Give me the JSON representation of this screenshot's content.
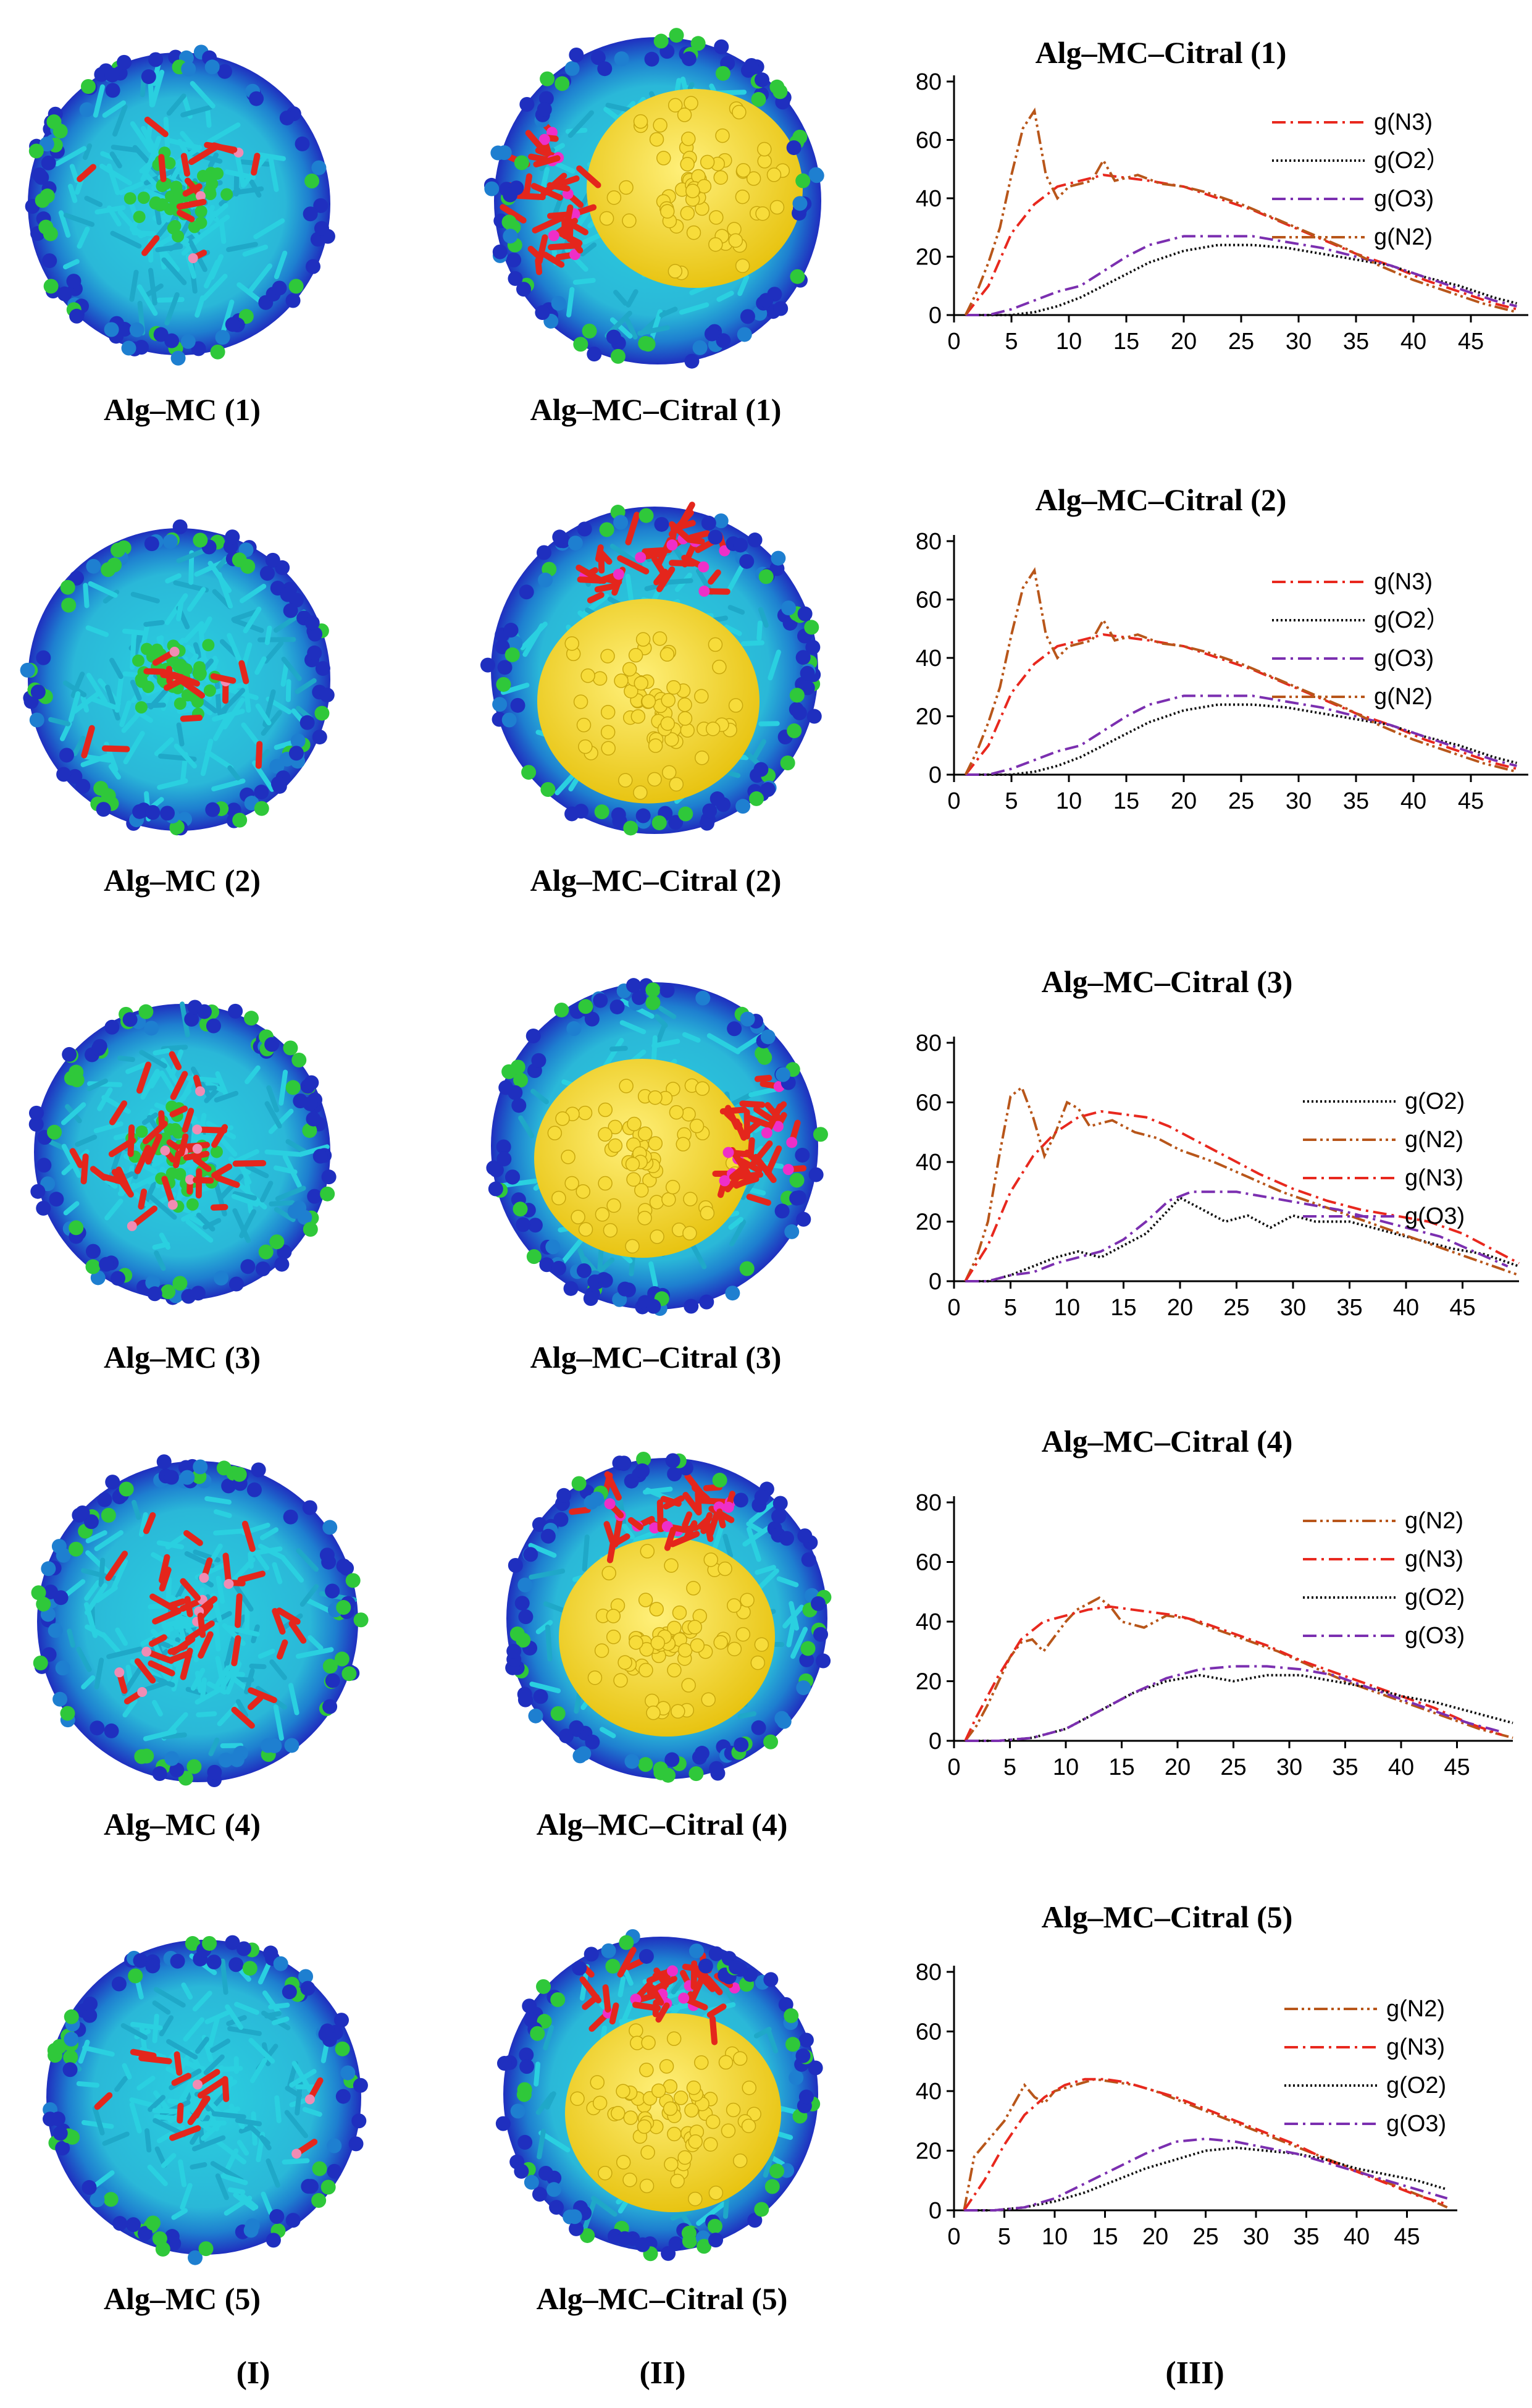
{
  "column_labels": [
    "(I)",
    "(II)",
    "(III)"
  ],
  "rows": [
    {
      "label_I": "Alg–MC (1)",
      "label_II": "Alg–MC–Citral (1)"
    },
    {
      "label_I": "Alg–MC (2)",
      "label_II": "Alg–MC–Citral (2)"
    },
    {
      "label_I": "Alg–MC (3)",
      "label_II": "Alg–MC–Citral (3)"
    },
    {
      "label_I": "Alg–MC (4)",
      "label_II": "Alg–MC–Citral (4)"
    },
    {
      "label_I": "Alg–MC (5)",
      "label_II": "Alg–MC–Citral (5)"
    }
  ],
  "colors": {
    "shell_dark_blue": "#1f2fbf",
    "shell_light_blue": "#1e7fd0",
    "cyan": "#2ad0e0",
    "green": "#2fc83a",
    "red": "#e4261c",
    "yellow": "#f2d21c",
    "magenta": "#ee2fc8",
    "pink": "#f08cb4"
  },
  "series_styles": {
    "g(N3)": {
      "color": "#e8281e",
      "dash": "22,8,4,8"
    },
    "g(O2）": {
      "color": "#111111",
      "dash": "3,4"
    },
    "g(O2)": {
      "color": "#111111",
      "dash": "3,4"
    },
    "g(O3)": {
      "color": "#7b2fb0",
      "dash": "22,8,4,8"
    },
    "g(N2)": {
      "color": "#b8561a",
      "dash": "22,6,4,6,4,6"
    }
  },
  "chart_data": [
    {
      "type": "line",
      "title": "Alg–MC–Citral (1)",
      "xlabel": "",
      "ylabel": "",
      "xlim": [
        0,
        50
      ],
      "ylim": [
        0,
        80
      ],
      "xticks": [
        0,
        5,
        10,
        15,
        20,
        25,
        30,
        35,
        40,
        45
      ],
      "yticks": [
        0,
        20,
        40,
        60,
        80
      ],
      "legend": [
        "g(N3)",
        "g(O2）",
        "g(O3)",
        "g(N2)"
      ],
      "series": [
        {
          "name": "g(N3)",
          "x": [
            1,
            3,
            5,
            7,
            9,
            11,
            13,
            15,
            17,
            20,
            23,
            26,
            29,
            32,
            35,
            38,
            41,
            44,
            47,
            49
          ],
          "values": [
            0,
            10,
            28,
            38,
            44,
            46,
            48,
            47,
            46,
            44,
            40,
            36,
            31,
            26,
            21,
            17,
            12,
            8,
            4,
            2
          ]
        },
        {
          "name": "g(O2）",
          "x": [
            1,
            3,
            5,
            7,
            9,
            11,
            13,
            15,
            17,
            20,
            23,
            26,
            29,
            32,
            35,
            38,
            41,
            44,
            47,
            49
          ],
          "values": [
            0,
            0,
            0,
            1,
            3,
            6,
            10,
            14,
            18,
            22,
            24,
            24,
            23,
            21,
            19,
            17,
            13,
            10,
            6,
            4
          ]
        },
        {
          "name": "g(O3)",
          "x": [
            1,
            3,
            5,
            7,
            9,
            11,
            13,
            15,
            17,
            20,
            23,
            26,
            29,
            32,
            35,
            38,
            41,
            44,
            47,
            49
          ],
          "values": [
            0,
            0,
            2,
            5,
            8,
            10,
            15,
            20,
            24,
            27,
            27,
            27,
            25,
            23,
            20,
            17,
            13,
            9,
            5,
            3
          ]
        },
        {
          "name": "g(N2)",
          "x": [
            1,
            2,
            3,
            4,
            5,
            6,
            7,
            8,
            9,
            10,
            12,
            13,
            14,
            16,
            18,
            20,
            22,
            25,
            28,
            31,
            34,
            37,
            40,
            43,
            46,
            49
          ],
          "values": [
            0,
            8,
            18,
            30,
            48,
            64,
            70,
            48,
            40,
            44,
            46,
            53,
            46,
            48,
            45,
            44,
            42,
            38,
            33,
            28,
            23,
            17,
            12,
            8,
            4,
            1
          ]
        }
      ]
    },
    {
      "type": "line",
      "title": "Alg–MC–Citral (2)",
      "xlabel": "",
      "ylabel": "",
      "xlim": [
        0,
        50
      ],
      "ylim": [
        0,
        80
      ],
      "xticks": [
        0,
        5,
        10,
        15,
        20,
        25,
        30,
        35,
        40,
        45
      ],
      "yticks": [
        0,
        20,
        40,
        60,
        80
      ],
      "legend": [
        "g(N3)",
        "g(O2）",
        "g(O3)",
        "g(N2)"
      ],
      "series": [
        {
          "name": "g(N3)",
          "x": [
            1,
            3,
            5,
            7,
            9,
            11,
            13,
            15,
            17,
            20,
            23,
            26,
            29,
            32,
            35,
            38,
            41,
            44,
            47,
            49
          ],
          "values": [
            0,
            10,
            28,
            38,
            44,
            46,
            48,
            47,
            46,
            44,
            40,
            36,
            31,
            26,
            21,
            17,
            12,
            8,
            4,
            2
          ]
        },
        {
          "name": "g(O2）",
          "x": [
            1,
            3,
            5,
            7,
            9,
            11,
            13,
            15,
            17,
            20,
            23,
            26,
            29,
            32,
            35,
            38,
            41,
            44,
            47,
            49
          ],
          "values": [
            0,
            0,
            0,
            1,
            3,
            6,
            10,
            14,
            18,
            22,
            24,
            24,
            23,
            21,
            19,
            17,
            13,
            10,
            6,
            4
          ]
        },
        {
          "name": "g(O3)",
          "x": [
            1,
            3,
            5,
            7,
            9,
            11,
            13,
            15,
            17,
            20,
            23,
            26,
            29,
            32,
            35,
            38,
            41,
            44,
            47,
            49
          ],
          "values": [
            0,
            0,
            2,
            5,
            8,
            10,
            15,
            20,
            24,
            27,
            27,
            27,
            25,
            23,
            20,
            17,
            13,
            9,
            5,
            3
          ]
        },
        {
          "name": "g(N2)",
          "x": [
            1,
            2,
            3,
            4,
            5,
            6,
            7,
            8,
            9,
            10,
            12,
            13,
            14,
            16,
            18,
            20,
            22,
            25,
            28,
            31,
            34,
            37,
            40,
            43,
            46,
            49
          ],
          "values": [
            0,
            8,
            18,
            30,
            48,
            64,
            70,
            48,
            40,
            44,
            46,
            53,
            46,
            48,
            45,
            44,
            42,
            38,
            33,
            28,
            23,
            17,
            12,
            8,
            4,
            1
          ]
        }
      ]
    },
    {
      "type": "line",
      "title": "Alg–MC–Citral (3)",
      "xlabel": "",
      "ylabel": "",
      "xlim": [
        0,
        50
      ],
      "ylim": [
        0,
        80
      ],
      "xticks": [
        0,
        5,
        10,
        15,
        20,
        25,
        30,
        35,
        40,
        45
      ],
      "yticks": [
        0,
        20,
        40,
        60,
        80
      ],
      "legend": [
        "g(O2)",
        "g(N2)",
        "g(N3)",
        "g(O3)"
      ],
      "series": [
        {
          "name": "g(O2)",
          "x": [
            1,
            3,
            5,
            7,
            9,
            11,
            13,
            15,
            17,
            19,
            20,
            22,
            24,
            26,
            28,
            30,
            32,
            35,
            38,
            41,
            44,
            47,
            50
          ],
          "values": [
            0,
            0,
            2,
            5,
            8,
            10,
            8,
            12,
            16,
            24,
            28,
            24,
            20,
            22,
            18,
            22,
            20,
            20,
            17,
            14,
            11,
            9,
            5
          ]
        },
        {
          "name": "g(N2)",
          "x": [
            1,
            2,
            3,
            4,
            5,
            6,
            7,
            8,
            9,
            10,
            11,
            12,
            14,
            16,
            18,
            20,
            23,
            26,
            29,
            32,
            35,
            38,
            41,
            44,
            47,
            50
          ],
          "values": [
            0,
            8,
            20,
            42,
            62,
            65,
            55,
            42,
            50,
            60,
            58,
            52,
            54,
            50,
            48,
            44,
            40,
            35,
            30,
            26,
            22,
            18,
            14,
            10,
            6,
            2
          ]
        },
        {
          "name": "g(N3)",
          "x": [
            1,
            3,
            5,
            7,
            9,
            11,
            13,
            15,
            17,
            19,
            21,
            24,
            27,
            30,
            33,
            36,
            39,
            42,
            45,
            48,
            50
          ],
          "values": [
            0,
            12,
            30,
            42,
            50,
            55,
            57,
            56,
            55,
            52,
            48,
            42,
            36,
            31,
            27,
            24,
            22,
            20,
            16,
            10,
            6
          ]
        },
        {
          "name": "g(O3)",
          "x": [
            1,
            3,
            5,
            7,
            9,
            11,
            13,
            15,
            17,
            19,
            21,
            23,
            25,
            28,
            31,
            34,
            37,
            40,
            43,
            46,
            49
          ],
          "values": [
            0,
            0,
            2,
            3,
            6,
            8,
            10,
            14,
            20,
            27,
            30,
            30,
            30,
            28,
            26,
            24,
            21,
            18,
            15,
            10,
            5
          ]
        }
      ]
    },
    {
      "type": "line",
      "title": "Alg–MC–Citral (4)",
      "xlabel": "",
      "ylabel": "",
      "xlim": [
        0,
        50
      ],
      "ylim": [
        0,
        80
      ],
      "xticks": [
        0,
        5,
        10,
        15,
        20,
        25,
        30,
        35,
        40,
        45
      ],
      "yticks": [
        0,
        20,
        40,
        60,
        80
      ],
      "legend": [
        "g(N2)",
        "g(N3)",
        "g(O2)",
        "g(O3)"
      ],
      "series": [
        {
          "name": "g(N2)",
          "x": [
            1,
            2,
            3,
            4,
            5,
            6,
            7,
            8,
            9,
            10,
            11,
            12,
            13,
            14,
            15,
            17,
            19,
            21,
            23,
            26,
            29,
            32,
            35,
            38,
            41,
            44,
            47,
            50
          ],
          "values": [
            0,
            5,
            12,
            20,
            28,
            33,
            34,
            30,
            35,
            40,
            44,
            46,
            48,
            45,
            40,
            38,
            42,
            41,
            38,
            34,
            30,
            25,
            20,
            16,
            12,
            8,
            4,
            1
          ]
        },
        {
          "name": "g(N3)",
          "x": [
            1,
            2,
            4,
            6,
            8,
            10,
            12,
            14,
            16,
            18,
            20,
            22,
            25,
            28,
            31,
            34,
            37,
            40,
            43,
            46,
            49
          ],
          "values": [
            0,
            8,
            22,
            34,
            40,
            42,
            44,
            45,
            44,
            43,
            42,
            40,
            36,
            32,
            27,
            23,
            19,
            15,
            11,
            6,
            2
          ]
        },
        {
          "name": "g(O2)",
          "x": [
            1,
            4,
            7,
            10,
            13,
            16,
            19,
            22,
            25,
            28,
            31,
            34,
            37,
            40,
            43,
            46,
            50
          ],
          "values": [
            0,
            0,
            1,
            4,
            10,
            16,
            20,
            22,
            20,
            22,
            22,
            20,
            18,
            15,
            13,
            10,
            6
          ]
        },
        {
          "name": "g(O3)",
          "x": [
            1,
            4,
            7,
            10,
            13,
            16,
            19,
            22,
            25,
            28,
            31,
            34,
            37,
            40,
            43,
            46,
            49
          ],
          "values": [
            0,
            0,
            1,
            4,
            10,
            16,
            21,
            24,
            25,
            25,
            24,
            22,
            18,
            14,
            10,
            6,
            3
          ]
        }
      ]
    },
    {
      "type": "line",
      "title": "Alg–MC–Citral (5)",
      "xlabel": "",
      "ylabel": "",
      "xlim": [
        0,
        50
      ],
      "ylim": [
        0,
        80
      ],
      "xticks": [
        0,
        5,
        10,
        15,
        20,
        25,
        30,
        35,
        40,
        45
      ],
      "yticks": [
        0,
        20,
        40,
        60,
        80
      ],
      "legend": [
        "g(N2)",
        "g(N3)",
        "g(O2)",
        "g(O3)"
      ],
      "series": [
        {
          "name": "g(N2)",
          "x": [
            1,
            2,
            3,
            4,
            5,
            6,
            7,
            8,
            9,
            10,
            12,
            14,
            16,
            18,
            20,
            23,
            26,
            29,
            32,
            35,
            38,
            41,
            44,
            47,
            49
          ],
          "values": [
            0,
            18,
            22,
            26,
            30,
            36,
            42,
            38,
            36,
            40,
            42,
            44,
            43,
            42,
            40,
            36,
            32,
            28,
            24,
            20,
            16,
            12,
            8,
            4,
            1
          ]
        },
        {
          "name": "g(N3)",
          "x": [
            1,
            2,
            3,
            5,
            7,
            9,
            11,
            13,
            15,
            17,
            19,
            22,
            25,
            28,
            31,
            34,
            37,
            40,
            43,
            46,
            49
          ],
          "values": [
            0,
            5,
            10,
            22,
            32,
            38,
            42,
            44,
            44,
            43,
            41,
            38,
            34,
            30,
            26,
            22,
            17,
            13,
            9,
            5,
            2
          ]
        },
        {
          "name": "g(O2)",
          "x": [
            1,
            4,
            7,
            10,
            13,
            16,
            19,
            22,
            25,
            28,
            31,
            34,
            37,
            40,
            43,
            46,
            49
          ],
          "values": [
            0,
            0,
            1,
            3,
            6,
            10,
            14,
            17,
            20,
            21,
            20,
            19,
            17,
            14,
            12,
            10,
            7
          ]
        },
        {
          "name": "g(O3)",
          "x": [
            1,
            4,
            7,
            10,
            13,
            16,
            19,
            22,
            25,
            28,
            31,
            34,
            37,
            40,
            43,
            46,
            49
          ],
          "values": [
            0,
            0,
            1,
            4,
            9,
            14,
            19,
            23,
            24,
            23,
            21,
            19,
            16,
            13,
            10,
            7,
            4
          ]
        }
      ]
    }
  ]
}
